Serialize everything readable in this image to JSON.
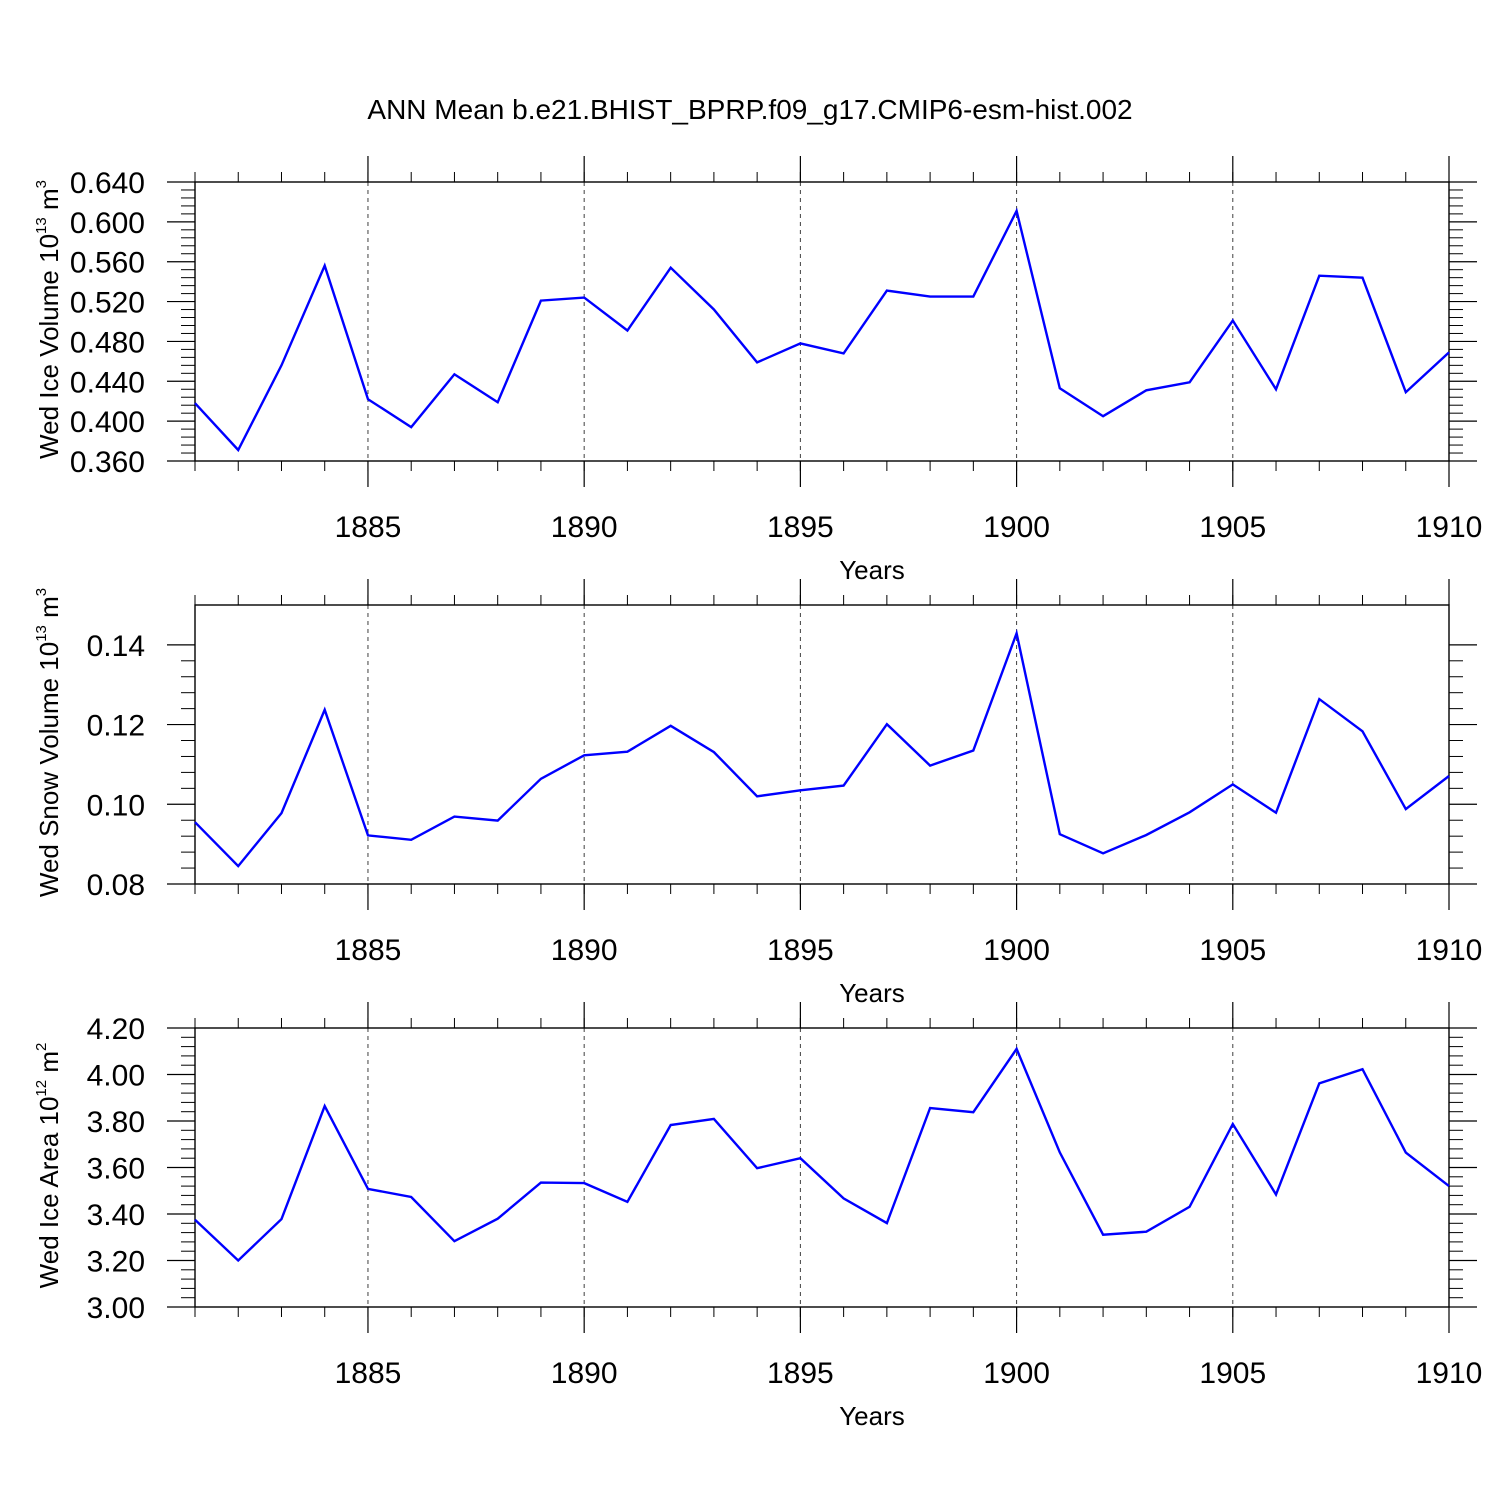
{
  "title": "ANN Mean b.e21.BHIST_BPRP.f09_g17.CMIP6-esm-hist.002",
  "colors": {
    "line": "#0000ff",
    "axes": "#000000",
    "grid": "#000000"
  },
  "chart_data": [
    {
      "type": "line",
      "ylabel": {
        "text": "Wed Ice Volume 10",
        "exp": "13",
        "unit": " m",
        "unit_exp": "3"
      },
      "xlabel": "Years",
      "xlim": [
        1881,
        1910
      ],
      "ylim": [
        0.36,
        0.64
      ],
      "yticks": [
        0.36,
        0.4,
        0.44,
        0.48,
        0.52,
        0.56,
        0.6,
        0.64
      ],
      "ytick_labels": [
        "0.360",
        "0.400",
        "0.440",
        "0.480",
        "0.520",
        "0.560",
        "0.600",
        "0.640"
      ],
      "xticks": [
        1885,
        1890,
        1895,
        1900,
        1905,
        1910
      ],
      "xtick_labels": [
        "1885",
        "1890",
        "1895",
        "1900",
        "1905",
        "1910"
      ],
      "grid": "vertical dashed at major x ticks",
      "x": [
        1881,
        1882,
        1883,
        1884,
        1885,
        1886,
        1887,
        1888,
        1889,
        1890,
        1891,
        1892,
        1893,
        1894,
        1895,
        1896,
        1897,
        1898,
        1899,
        1900,
        1901,
        1902,
        1903,
        1904,
        1905,
        1906,
        1907,
        1908,
        1909,
        1910
      ],
      "values": [
        0.418,
        0.371,
        0.456,
        0.556,
        0.422,
        0.394,
        0.447,
        0.419,
        0.521,
        0.524,
        0.491,
        0.554,
        0.512,
        0.459,
        0.478,
        0.468,
        0.531,
        0.525,
        0.525,
        0.611,
        0.433,
        0.405,
        0.431,
        0.439,
        0.501,
        0.432,
        0.546,
        0.544,
        0.429,
        0.469
      ]
    },
    {
      "type": "line",
      "ylabel": {
        "text": "Wed Snow Volume 10",
        "exp": "13",
        "unit": " m",
        "unit_exp": "3"
      },
      "xlabel": "Years",
      "xlim": [
        1881,
        1910
      ],
      "ylim": [
        0.08,
        0.15
      ],
      "yticks": [
        0.08,
        0.1,
        0.12,
        0.14
      ],
      "ytick_labels": [
        "0.08",
        "0.10",
        "0.12",
        "0.14"
      ],
      "xticks": [
        1885,
        1890,
        1895,
        1900,
        1905,
        1910
      ],
      "xtick_labels": [
        "1885",
        "1890",
        "1895",
        "1900",
        "1905",
        "1910"
      ],
      "grid": "vertical dashed at major x ticks",
      "x": [
        1881,
        1882,
        1883,
        1884,
        1885,
        1886,
        1887,
        1888,
        1889,
        1890,
        1891,
        1892,
        1893,
        1894,
        1895,
        1896,
        1897,
        1898,
        1899,
        1900,
        1901,
        1902,
        1903,
        1904,
        1905,
        1906,
        1907,
        1908,
        1909,
        1910
      ],
      "values": [
        0.0955,
        0.0845,
        0.0978,
        0.1237,
        0.0922,
        0.0911,
        0.0969,
        0.0959,
        0.1064,
        0.1123,
        0.1132,
        0.1197,
        0.1131,
        0.102,
        0.1035,
        0.1047,
        0.1201,
        0.1097,
        0.1135,
        0.1429,
        0.0925,
        0.0877,
        0.0923,
        0.098,
        0.105,
        0.0979,
        0.1264,
        0.1183,
        0.0988,
        0.1071
      ]
    },
    {
      "type": "line",
      "ylabel": {
        "text": "Wed Ice Area 10",
        "exp": "12",
        "unit": " m",
        "unit_exp": "2"
      },
      "xlabel": "Years",
      "xlim": [
        1881,
        1910
      ],
      "ylim": [
        3.0,
        4.2
      ],
      "yticks": [
        3.0,
        3.2,
        3.4,
        3.6,
        3.8,
        4.0,
        4.2
      ],
      "ytick_labels": [
        "3.00",
        "3.20",
        "3.40",
        "3.60",
        "3.80",
        "4.00",
        "4.20"
      ],
      "xticks": [
        1885,
        1890,
        1895,
        1900,
        1905,
        1910
      ],
      "xtick_labels": [
        "1885",
        "1890",
        "1895",
        "1900",
        "1905",
        "1910"
      ],
      "grid": "vertical dashed at major x ticks",
      "x": [
        1881,
        1882,
        1883,
        1884,
        1885,
        1886,
        1887,
        1888,
        1889,
        1890,
        1891,
        1892,
        1893,
        1894,
        1895,
        1896,
        1897,
        1898,
        1899,
        1900,
        1901,
        1902,
        1903,
        1904,
        1905,
        1906,
        1907,
        1908,
        1909,
        1910
      ],
      "values": [
        3.375,
        3.2,
        3.378,
        3.864,
        3.508,
        3.473,
        3.283,
        3.38,
        3.535,
        3.533,
        3.452,
        3.783,
        3.809,
        3.597,
        3.64,
        3.467,
        3.361,
        3.856,
        3.838,
        4.11,
        3.665,
        3.311,
        3.324,
        3.431,
        3.787,
        3.484,
        3.962,
        4.023,
        3.664,
        3.52
      ]
    }
  ]
}
